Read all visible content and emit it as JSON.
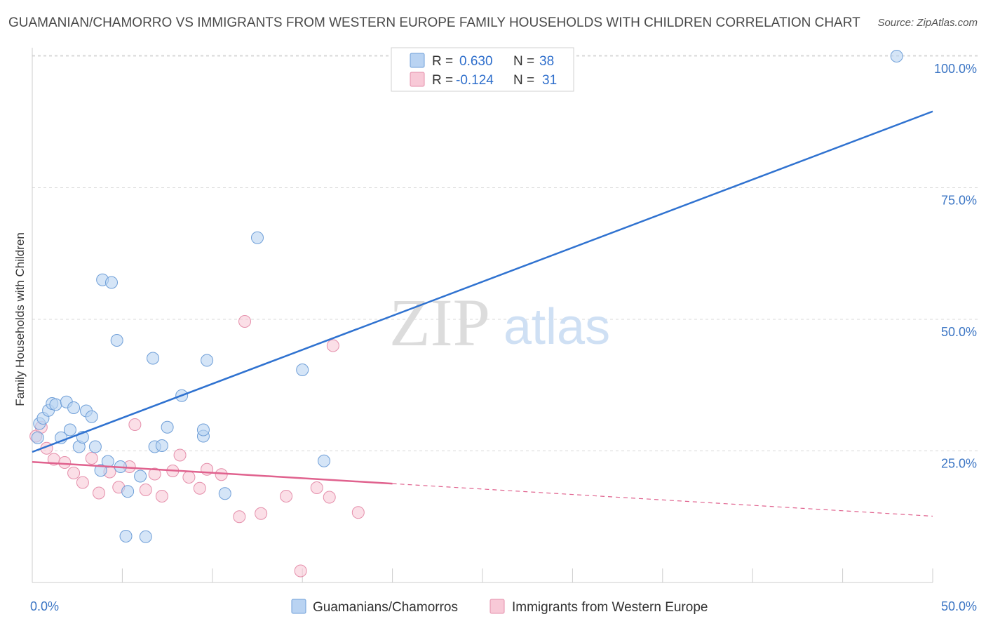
{
  "title": "GUAMANIAN/CHAMORRO VS IMMIGRANTS FROM WESTERN EUROPE FAMILY HOUSEHOLDS WITH CHILDREN CORRELATION CHART",
  "source": "Source: ZipAtlas.com",
  "watermark": {
    "zip": "ZIP",
    "atlas": "atlas"
  },
  "colors": {
    "blue_fill": "#b9d3f2",
    "blue_stroke": "#6f9fd8",
    "blue_line": "#2f72d0",
    "pink_fill": "#f8c9d7",
    "pink_stroke": "#e58fab",
    "pink_line": "#e0628e",
    "grid": "#d8d8d8",
    "axis_text": "#3b75c4"
  },
  "legend": {
    "series1": {
      "r_label": "R =",
      "r_value": "0.630",
      "n_label": "N =",
      "n_value": "38"
    },
    "series2": {
      "r_label": "R =",
      "r_value": "-0.124",
      "n_label": "N =",
      "n_value": "31"
    }
  },
  "chart_data": {
    "type": "scatter",
    "title": "GUAMANIAN/CHAMORRO VS IMMIGRANTS FROM WESTERN EUROPE FAMILY HOUSEHOLDS WITH CHILDREN CORRELATION CHART",
    "xlabel": "",
    "ylabel": "Family Households with Children",
    "xlim": [
      0,
      50
    ],
    "ylim": [
      0,
      102
    ],
    "x_tick_labels": [
      "0.0%",
      "50.0%"
    ],
    "y_ticks": [
      25,
      50,
      75,
      100
    ],
    "y_tick_labels": [
      "25.0%",
      "50.0%",
      "75.0%",
      "100.0%"
    ],
    "grid": true,
    "legend_position": "top-center",
    "series": [
      {
        "name": "Guamanians/Chamorros",
        "color": "#b9d3f2",
        "r": 0.63,
        "n": 38,
        "trend": {
          "x": [
            0,
            50
          ],
          "y": [
            24.8,
            89.5
          ],
          "dashed_from_x": null
        },
        "points": [
          [
            0.3,
            27.5
          ],
          [
            0.4,
            30.2
          ],
          [
            0.6,
            31.2
          ],
          [
            0.9,
            32.7
          ],
          [
            1.1,
            34.0
          ],
          [
            1.3,
            33.8
          ],
          [
            1.6,
            27.5
          ],
          [
            1.9,
            34.3
          ],
          [
            2.1,
            29.0
          ],
          [
            2.3,
            33.2
          ],
          [
            2.6,
            25.8
          ],
          [
            2.8,
            27.6
          ],
          [
            3.0,
            32.6
          ],
          [
            3.3,
            31.5
          ],
          [
            3.5,
            25.8
          ],
          [
            3.8,
            21.3
          ],
          [
            3.9,
            57.5
          ],
          [
            4.2,
            23.0
          ],
          [
            4.4,
            57.0
          ],
          [
            4.7,
            46.0
          ],
          [
            4.9,
            22.0
          ],
          [
            5.2,
            8.8
          ],
          [
            5.3,
            17.3
          ],
          [
            6.0,
            20.2
          ],
          [
            6.3,
            8.7
          ],
          [
            6.7,
            42.6
          ],
          [
            6.8,
            25.8
          ],
          [
            7.2,
            26.0
          ],
          [
            7.5,
            29.5
          ],
          [
            8.3,
            35.5
          ],
          [
            9.5,
            27.8
          ],
          [
            9.5,
            29.0
          ],
          [
            9.7,
            42.2
          ],
          [
            10.7,
            16.9
          ],
          [
            12.5,
            65.5
          ],
          [
            15.0,
            40.4
          ],
          [
            16.2,
            23.1
          ],
          [
            48.0,
            100.0
          ]
        ]
      },
      {
        "name": "Immigrants from Western Europe",
        "color": "#f8c9d7",
        "r": -0.124,
        "n": 31,
        "trend": {
          "x": [
            0,
            50
          ],
          "y": [
            22.9,
            12.6
          ],
          "dashed_from_x": 20.0
        },
        "points": [
          [
            0.2,
            27.8
          ],
          [
            0.5,
            29.5
          ],
          [
            0.8,
            25.5
          ],
          [
            1.2,
            23.4
          ],
          [
            1.8,
            22.8
          ],
          [
            2.3,
            20.8
          ],
          [
            2.8,
            19.0
          ],
          [
            3.3,
            23.6
          ],
          [
            3.7,
            17.0
          ],
          [
            4.3,
            21.0
          ],
          [
            4.8,
            18.1
          ],
          [
            5.4,
            22.0
          ],
          [
            5.7,
            30.0
          ],
          [
            6.3,
            17.6
          ],
          [
            6.8,
            20.6
          ],
          [
            7.2,
            16.4
          ],
          [
            7.8,
            21.2
          ],
          [
            8.2,
            24.2
          ],
          [
            8.7,
            20.0
          ],
          [
            9.3,
            17.9
          ],
          [
            9.7,
            21.5
          ],
          [
            10.5,
            20.5
          ],
          [
            11.5,
            12.5
          ],
          [
            11.8,
            49.6
          ],
          [
            12.7,
            13.1
          ],
          [
            14.1,
            16.4
          ],
          [
            14.9,
            2.2
          ],
          [
            15.8,
            18.0
          ],
          [
            16.5,
            16.2
          ],
          [
            16.7,
            45.0
          ],
          [
            18.1,
            13.3
          ]
        ]
      }
    ],
    "bottom_legend": [
      "Guamanians/Chamorros",
      "Immigrants from Western Europe"
    ]
  }
}
